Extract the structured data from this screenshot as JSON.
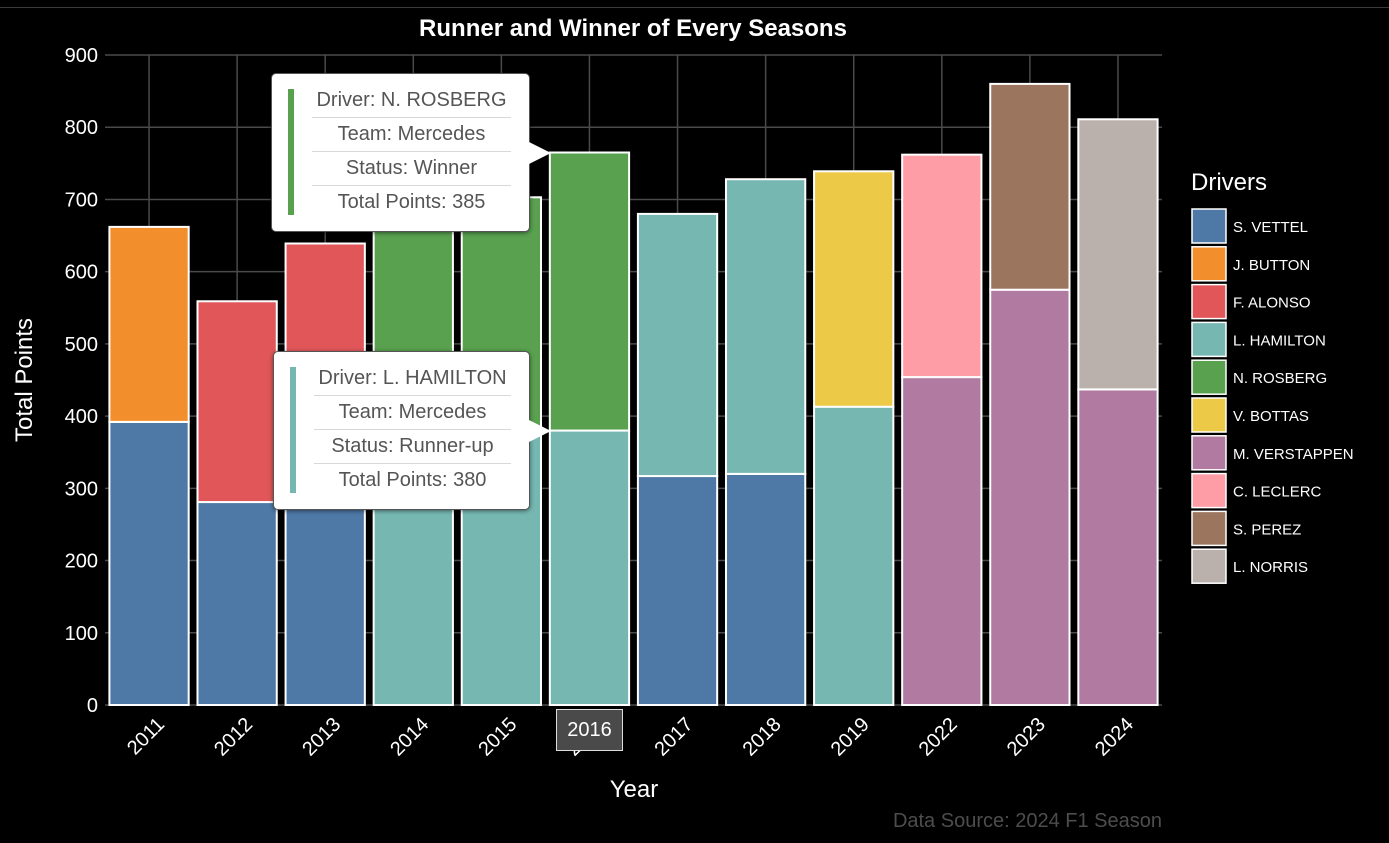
{
  "chart_data": {
    "type": "bar",
    "stacked": true,
    "title": "Runner and Winner of Every Seasons",
    "xlabel": "Year",
    "ylabel": "Total Points",
    "ylim": [
      0,
      900
    ],
    "yticks": [
      0,
      100,
      200,
      300,
      400,
      500,
      600,
      700,
      800,
      900
    ],
    "grid": true,
    "categories": [
      "2011",
      "2012",
      "2013",
      "2014",
      "2015",
      "2016",
      "2017",
      "2018",
      "2019",
      "2022",
      "2023",
      "2024"
    ],
    "bars": [
      {
        "year": "2011",
        "bottom": {
          "driver": "S. VETTEL",
          "value": 392
        },
        "top": {
          "driver": "J. BUTTON",
          "value": 270
        }
      },
      {
        "year": "2012",
        "bottom": {
          "driver": "S. VETTEL",
          "value": 281
        },
        "top": {
          "driver": "F. ALONSO",
          "value": 278
        }
      },
      {
        "year": "2013",
        "bottom": {
          "driver": "S. VETTEL",
          "value": 397
        },
        "top": {
          "driver": "F. ALONSO",
          "value": 242
        }
      },
      {
        "year": "2014",
        "bottom": {
          "driver": "L. HAMILTON",
          "value": 384
        },
        "top": {
          "driver": "N. ROSBERG",
          "value": 317
        }
      },
      {
        "year": "2015",
        "bottom": {
          "driver": "L. HAMILTON",
          "value": 381
        },
        "top": {
          "driver": "N. ROSBERG",
          "value": 322
        }
      },
      {
        "year": "2016",
        "bottom": {
          "driver": "L. HAMILTON",
          "value": 380
        },
        "top": {
          "driver": "N. ROSBERG",
          "value": 385
        }
      },
      {
        "year": "2017",
        "bottom": {
          "driver": "S. VETTEL",
          "value": 317
        },
        "top": {
          "driver": "L. HAMILTON",
          "value": 363
        }
      },
      {
        "year": "2018",
        "bottom": {
          "driver": "S. VETTEL",
          "value": 320
        },
        "top": {
          "driver": "L. HAMILTON",
          "value": 408
        }
      },
      {
        "year": "2019",
        "bottom": {
          "driver": "L. HAMILTON",
          "value": 413
        },
        "top": {
          "driver": "V. BOTTAS",
          "value": 326
        }
      },
      {
        "year": "2022",
        "bottom": {
          "driver": "M. VERSTAPPEN",
          "value": 454
        },
        "top": {
          "driver": "C. LECLERC",
          "value": 308
        }
      },
      {
        "year": "2023",
        "bottom": {
          "driver": "M. VERSTAPPEN",
          "value": 575
        },
        "top": {
          "driver": "S. PEREZ",
          "value": 285
        }
      },
      {
        "year": "2024",
        "bottom": {
          "driver": "M. VERSTAPPEN",
          "value": 437
        },
        "top": {
          "driver": "L. NORRIS",
          "value": 374
        }
      }
    ],
    "legend": {
      "title": "Drivers",
      "position": "right",
      "items": [
        {
          "name": "S. VETTEL",
          "color": "#4e79a7"
        },
        {
          "name": "J. BUTTON",
          "color": "#f28e2b"
        },
        {
          "name": "F. ALONSO",
          "color": "#e15759"
        },
        {
          "name": "L. HAMILTON",
          "color": "#76b7b2"
        },
        {
          "name": "N. ROSBERG",
          "color": "#59a14f"
        },
        {
          "name": "V. BOTTAS",
          "color": "#edc948"
        },
        {
          "name": "M. VERSTAPPEN",
          "color": "#b07aa1"
        },
        {
          "name": "C. LECLERC",
          "color": "#ff9da7"
        },
        {
          "name": "S. PEREZ",
          "color": "#9c755f"
        },
        {
          "name": "L. NORRIS",
          "color": "#bab0ac"
        }
      ]
    },
    "caption": "Data Source: 2024 F1 Season"
  },
  "tooltips": {
    "winner": {
      "driver_line": "Driver: N. ROSBERG",
      "team_line": "Team: Mercedes",
      "status_line": "Status: Winner",
      "points_line": "Total Points: 385",
      "color": "#59a14f"
    },
    "runner": {
      "driver_line": "Driver: L. HAMILTON",
      "team_line": "Team: Mercedes",
      "status_line": "Status: Runner-up",
      "points_line": "Total Points: 380",
      "color": "#76b7b2"
    }
  },
  "hover_year": "2016"
}
